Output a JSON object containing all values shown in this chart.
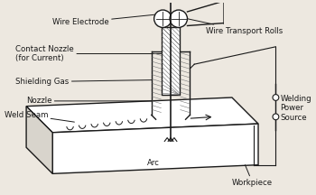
{
  "bg_color": "#ede8e0",
  "line_color": "#1a1a1a",
  "labels": {
    "wire_electrode": "Wire Electrode",
    "contact_nozzle": "Contact Nozzle\n(for Current)",
    "shielding_gas": "Shielding Gas",
    "nozzle": "Nozzle",
    "weld_seam": "Weld Seam",
    "arc": "Arc",
    "wire_transport": "Wire Transport Rolls",
    "welding_power": "Welding\nPower\nSource",
    "workpiece": "Workpiece"
  },
  "figsize": [
    3.5,
    2.16
  ],
  "dpi": 100
}
